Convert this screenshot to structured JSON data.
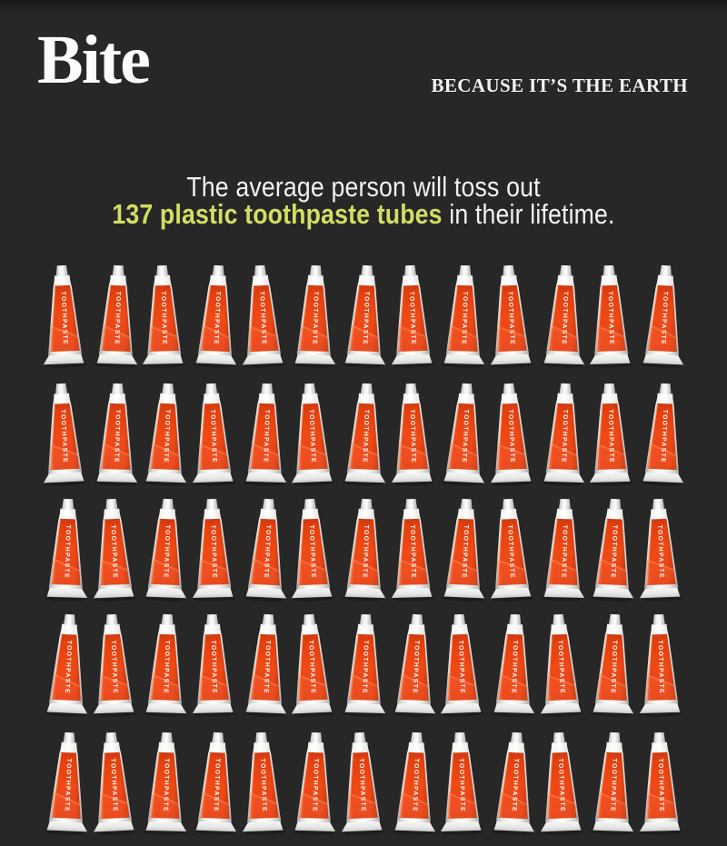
{
  "page": {
    "background_color": "#272727"
  },
  "header": {
    "logo_text": "Bite",
    "tagline": "BECAUSE IT’S THE EARTH"
  },
  "headline": {
    "line1": "The average person will toss out",
    "line2_highlight": "137 plastic toothpaste tubes",
    "line2_rest": " in their lifetime.",
    "highlight_color": "#d3dd62",
    "text_color": "#f1f1ef"
  },
  "tube_grid": {
    "rows": 5,
    "columns": 13,
    "visible_tube_count": 65,
    "tube_label": "TOOTHPASTE",
    "tube_red_color": "#e8431a",
    "tube_white_color": "#f4f4f2"
  }
}
